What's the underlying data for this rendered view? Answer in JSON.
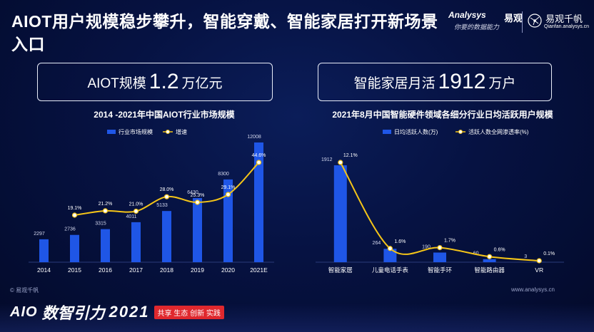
{
  "header": {
    "title": "AIOT用户规模稳步攀升，智能穿戴、智能家居打开新场景入口"
  },
  "brand": {
    "logo": "Analysys",
    "name": "易观",
    "slogan": "你要的数据能力",
    "name2": "易观千帆",
    "url": "Qianfan.analysys.cn"
  },
  "kpis": [
    {
      "label": "AIOT规模",
      "value": "1.2",
      "unit": "万亿元"
    },
    {
      "label": "智能家居月活",
      "value": "1912",
      "unit": "万户"
    }
  ],
  "chart_data": [
    {
      "type": "bar",
      "title": "2014 -2021年中国AIOT行业市场规模",
      "categories": [
        "2014",
        "2015",
        "2016",
        "2017",
        "2018",
        "2019",
        "2020",
        "2021E"
      ],
      "series": [
        {
          "name": "行业市场规模",
          "type": "bar",
          "color": "#1f56e6",
          "values": [
            2297,
            2736,
            3315,
            4011,
            5133,
            6430,
            8300,
            12008
          ],
          "labels": [
            "2297",
            "2736",
            "3315",
            "4011",
            "5133",
            "6430",
            "8300",
            "12008"
          ]
        },
        {
          "name": "增速",
          "type": "line",
          "color": "#f5c518",
          "values": [
            null,
            19.1,
            21.2,
            21.0,
            28.0,
            25.3,
            29.1,
            44.6
          ],
          "labels": [
            "",
            "19.1%",
            "21.2%",
            "21.0%",
            "28.0%",
            "25.3%",
            "29.1%",
            "44.6%"
          ]
        }
      ],
      "legend": "top-left"
    },
    {
      "type": "bar",
      "title": "2021年8月中国智能硬件领域各细分行业日均活跃用户规模",
      "categories": [
        "智能家居",
        "儿童电话手表",
        "智能手环",
        "智能路由器",
        "VR"
      ],
      "series": [
        {
          "name": "日均活跃人数(万)",
          "type": "bar",
          "color": "#1f56e6",
          "values": [
            1912,
            264,
            190,
            60,
            3
          ],
          "labels": [
            "1912",
            "264",
            "190",
            "60",
            "3"
          ]
        },
        {
          "name": "活跃人数全网渗透率(%)",
          "type": "line",
          "color": "#f5c518",
          "values": [
            12.1,
            1.6,
            1.7,
            0.6,
            0.1
          ],
          "labels": [
            "12.1%",
            "1.6%",
            "1.7%",
            "0.6%",
            "0.1%"
          ]
        }
      ],
      "legend": "top-left"
    }
  ],
  "footer": {
    "copyright": "© 易观千帆",
    "url": "www.analysys.cn",
    "event_logo": "AIO",
    "event_name": "数智引力",
    "event_year": "2021",
    "event_tag": "共享 生态 创新 实践"
  }
}
